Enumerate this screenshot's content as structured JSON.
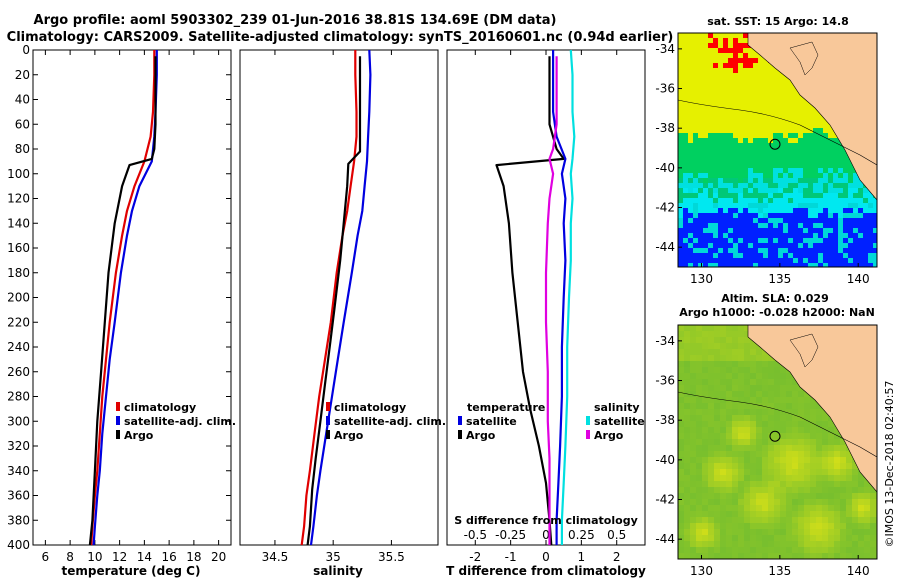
{
  "header": {
    "line1": "Argo profile: aoml 5903302_239 01-Jun-2016 38.81S 134.69E (DM data)",
    "line2": "Climatology: CARS2009. Satellite-adjusted climatology: synTS_20160601.nc (0.94d earlier)"
  },
  "credit": "©IMOS 13-Dec-2018 02:40:57",
  "colors": {
    "argo": "#000000",
    "climatology": "#e00000",
    "satellite": "#0000e0",
    "sal_satellite": "#00e0e0",
    "sal_argo": "#e000e0"
  },
  "chart_data": [
    {
      "type": "line",
      "id": "temperature",
      "xlabel": "temperature (deg C)",
      "ylabel": "",
      "xlim": [
        5,
        21
      ],
      "ylim": [
        400,
        0
      ],
      "xticks": [
        6,
        8,
        10,
        12,
        14,
        16,
        18,
        20
      ],
      "yticks": [
        0,
        20,
        40,
        60,
        80,
        100,
        120,
        140,
        160,
        180,
        200,
        220,
        240,
        260,
        280,
        300,
        320,
        340,
        360,
        380,
        400
      ],
      "legend": [
        "climatology",
        "satellite-adj. clim.",
        "Argo"
      ],
      "series": [
        {
          "name": "climatology",
          "color": "climatology",
          "x": [
            14.8,
            14.8,
            14.7,
            14.5,
            14.0,
            13.2,
            12.6,
            12.2,
            11.7,
            11.2,
            10.9,
            10.6,
            10.4,
            10.2,
            10.0,
            9.8,
            9.7
          ],
          "y": [
            0,
            20,
            50,
            70,
            90,
            110,
            130,
            150,
            180,
            220,
            250,
            280,
            310,
            340,
            360,
            385,
            400
          ]
        },
        {
          "name": "satellite-adj. clim.",
          "color": "satellite",
          "x": [
            15.0,
            15.0,
            14.9,
            14.8,
            14.6,
            13.6,
            13.0,
            12.6,
            12.1,
            11.6,
            11.2,
            10.9,
            10.6,
            10.4,
            10.2,
            10.0,
            9.9
          ],
          "y": [
            0,
            20,
            50,
            70,
            90,
            110,
            130,
            150,
            180,
            220,
            250,
            280,
            310,
            340,
            360,
            385,
            400
          ]
        },
        {
          "name": "Argo",
          "color": "argo",
          "x": [
            14.9,
            14.9,
            14.9,
            14.8,
            14.6,
            12.8,
            12.2,
            11.6,
            11.1,
            10.8,
            10.5,
            10.2,
            10.0,
            9.8,
            9.6
          ],
          "y": [
            5,
            30,
            60,
            80,
            88,
            93,
            110,
            140,
            180,
            220,
            260,
            300,
            340,
            380,
            400
          ]
        }
      ]
    },
    {
      "type": "line",
      "id": "salinity",
      "xlabel": "salinity",
      "ylabel": "",
      "xlim": [
        34.2,
        35.9
      ],
      "ylim": [
        400,
        0
      ],
      "xticks": [
        34.5,
        35,
        35.5
      ],
      "tick_labels": [
        "34.5",
        "35",
        "35.5"
      ],
      "legend": [
        "climatology",
        "satellite-adj. clim.",
        "Argo"
      ],
      "series": [
        {
          "name": "climatology",
          "color": "climatology",
          "x": [
            35.19,
            35.19,
            35.2,
            35.2,
            35.18,
            35.15,
            35.12,
            35.08,
            35.03,
            34.98,
            34.93,
            34.88,
            34.84,
            34.8,
            34.77,
            34.75,
            34.73
          ],
          "y": [
            0,
            20,
            50,
            70,
            90,
            110,
            130,
            150,
            180,
            220,
            250,
            280,
            310,
            340,
            360,
            385,
            400
          ]
        },
        {
          "name": "satellite-adj. clim.",
          "color": "satellite",
          "x": [
            35.31,
            35.32,
            35.31,
            35.3,
            35.29,
            35.27,
            35.25,
            35.21,
            35.16,
            35.09,
            35.04,
            34.99,
            34.94,
            34.89,
            34.86,
            34.83,
            34.81
          ],
          "y": [
            0,
            20,
            50,
            70,
            90,
            110,
            130,
            150,
            180,
            220,
            250,
            280,
            310,
            340,
            360,
            385,
            400
          ]
        },
        {
          "name": "Argo",
          "color": "argo",
          "x": [
            35.23,
            35.23,
            35.23,
            35.23,
            35.23,
            35.13,
            35.12,
            35.09,
            35.06,
            35.01,
            34.97,
            34.93,
            34.89,
            34.85,
            34.82,
            34.8,
            34.78
          ],
          "y": [
            5,
            30,
            60,
            80,
            82,
            92,
            110,
            140,
            170,
            210,
            240,
            270,
            300,
            330,
            355,
            385,
            400
          ]
        }
      ]
    },
    {
      "type": "line",
      "id": "difference",
      "xlabel": "T difference from climatology",
      "xlabel_top": "S difference from climatology",
      "xlim": [
        -2.8,
        2.8
      ],
      "ylim": [
        400,
        0
      ],
      "xticks": [
        -2,
        -1,
        0,
        1,
        2
      ],
      "s_ticks": [
        -0.5,
        -0.25,
        0,
        0.25,
        0.5
      ],
      "s_tick_labels": [
        "-0.5",
        "-0.25",
        "0",
        "0.25",
        "0.5"
      ],
      "legend_temperature": {
        "title": "temperature",
        "items": [
          "satellite",
          "Argo"
        ]
      },
      "legend_salinity": {
        "title": "salinity",
        "items": [
          "satellite",
          "Argo"
        ]
      },
      "series": [
        {
          "name": "T Argo",
          "color": "argo",
          "x": [
            0.1,
            0.1,
            0.1,
            0.3,
            0.5,
            -1.4,
            -1.2,
            -1.05,
            -0.95,
            -0.8,
            -0.65,
            -0.45,
            -0.2,
            0.0,
            0.1,
            0.15
          ],
          "y": [
            5,
            30,
            60,
            80,
            88,
            93,
            110,
            140,
            180,
            220,
            260,
            290,
            320,
            350,
            380,
            400
          ]
        },
        {
          "name": "T satellite",
          "color": "satellite",
          "x": [
            0.2,
            0.2,
            0.2,
            0.3,
            0.55,
            0.45,
            0.55,
            0.5,
            0.55,
            0.5,
            0.45,
            0.45,
            0.4,
            0.35,
            0.3,
            0.3
          ],
          "y": [
            0,
            20,
            50,
            70,
            88,
            100,
            120,
            140,
            170,
            200,
            240,
            280,
            320,
            350,
            380,
            400
          ]
        },
        {
          "name": "S satellite",
          "color": "sal_satellite",
          "x": [
            0.7,
            0.75,
            0.75,
            0.8,
            0.75,
            0.7,
            0.75,
            0.7,
            0.7,
            0.65,
            0.6,
            0.6,
            0.55,
            0.5,
            0.45,
            0.45
          ],
          "y": [
            0,
            20,
            50,
            70,
            88,
            100,
            120,
            140,
            170,
            200,
            240,
            280,
            320,
            350,
            380,
            400
          ]
        },
        {
          "name": "S Argo",
          "color": "sal_argo",
          "x": [
            0.3,
            0.3,
            0.3,
            0.2,
            0.1,
            0.2,
            0.1,
            0.05,
            0.0,
            0.0,
            0.05,
            0.05,
            0.1,
            0.1,
            0.1,
            0.1
          ],
          "y": [
            5,
            30,
            60,
            80,
            88,
            100,
            120,
            140,
            180,
            220,
            260,
            300,
            330,
            360,
            385,
            400
          ]
        }
      ]
    },
    {
      "type": "heatmap",
      "id": "sst_map",
      "title": "sat. SST: 15 Argo: 14.8",
      "xlim": [
        128.5,
        141.2
      ],
      "ylim": [
        -45,
        -33.2
      ],
      "xticks": [
        130,
        135,
        140
      ],
      "yticks": [
        -34,
        -36,
        -38,
        -40,
        -42,
        -44
      ],
      "argo_position": {
        "lon": 134.69,
        "lat": -38.81
      }
    },
    {
      "type": "heatmap",
      "id": "sla_map",
      "title": "Altim. SLA: 0.029",
      "subtitle": "Argo h1000: -0.028 h2000: NaN",
      "xlim": [
        128.5,
        141.2
      ],
      "ylim": [
        -45,
        -33.2
      ],
      "xticks": [
        130,
        135,
        140
      ],
      "yticks": [
        -34,
        -36,
        -38,
        -40,
        -42,
        -44
      ],
      "argo_position": {
        "lon": 134.69,
        "lat": -38.81
      }
    }
  ]
}
